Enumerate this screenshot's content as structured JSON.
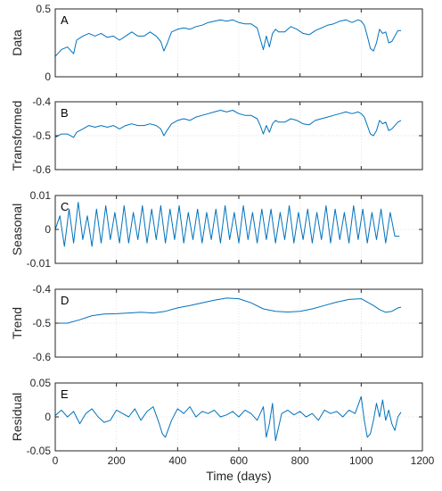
{
  "chart_data": {
    "type": "line",
    "line_color": "#0072BD",
    "xlabel": "Time (days)",
    "xlim": [
      0,
      1200
    ],
    "xticks": [
      "0",
      "200",
      "400",
      "600",
      "800",
      "1000",
      "1200"
    ],
    "x_grid": true,
    "panels": [
      {
        "letter": "A",
        "ylabel": "Data",
        "ylim": [
          0,
          0.5
        ],
        "yticks": [
          "0",
          "0.5"
        ],
        "series": [
          {
            "x": [
              0,
              20,
              40,
              60,
              70,
              90,
              110,
              130,
              150,
              170,
              190,
              210,
              230,
              250,
              270,
              290,
              310,
              330,
              345,
              355,
              365,
              380,
              400,
              420,
              440,
              460,
              480,
              500,
              520,
              540,
              560,
              580,
              600,
              620,
              640,
              660,
              670,
              680,
              690,
              700,
              710,
              720,
              730,
              750,
              770,
              790,
              810,
              830,
              850,
              870,
              890,
              910,
              930,
              950,
              970,
              990,
              1000,
              1010,
              1020,
              1030,
              1040,
              1050,
              1060,
              1070,
              1080,
              1090,
              1100,
              1110,
              1120,
              1130
            ],
            "y": [
              0.15,
              0.2,
              0.22,
              0.17,
              0.27,
              0.3,
              0.32,
              0.3,
              0.32,
              0.29,
              0.3,
              0.27,
              0.3,
              0.33,
              0.3,
              0.3,
              0.33,
              0.3,
              0.26,
              0.19,
              0.24,
              0.33,
              0.35,
              0.36,
              0.35,
              0.37,
              0.38,
              0.4,
              0.41,
              0.42,
              0.41,
              0.42,
              0.4,
              0.39,
              0.39,
              0.36,
              0.28,
              0.2,
              0.3,
              0.22,
              0.32,
              0.35,
              0.33,
              0.33,
              0.37,
              0.35,
              0.32,
              0.31,
              0.34,
              0.36,
              0.38,
              0.39,
              0.41,
              0.42,
              0.4,
              0.42,
              0.41,
              0.38,
              0.3,
              0.21,
              0.19,
              0.25,
              0.35,
              0.32,
              0.33,
              0.25,
              0.26,
              0.3,
              0.34,
              0.34
            ]
          }
        ]
      },
      {
        "letter": "B",
        "ylabel": "Transformed",
        "ylim": [
          -0.6,
          -0.4
        ],
        "yticks": [
          "-0.4",
          "-0.5",
          "-0.6"
        ],
        "zero_line_at": -0.5,
        "series": [
          {
            "x": [
              0,
              20,
              40,
              60,
              70,
              90,
              110,
              130,
              150,
              170,
              190,
              210,
              230,
              250,
              270,
              290,
              310,
              330,
              345,
              355,
              365,
              380,
              400,
              420,
              440,
              460,
              480,
              500,
              520,
              540,
              560,
              580,
              600,
              620,
              640,
              660,
              670,
              680,
              690,
              700,
              710,
              720,
              730,
              750,
              770,
              790,
              810,
              830,
              850,
              870,
              890,
              910,
              930,
              950,
              970,
              990,
              1000,
              1010,
              1020,
              1030,
              1040,
              1050,
              1060,
              1070,
              1080,
              1090,
              1100,
              1110,
              1120,
              1130
            ],
            "y": [
              -0.505,
              -0.495,
              -0.495,
              -0.505,
              -0.49,
              -0.48,
              -0.47,
              -0.475,
              -0.47,
              -0.475,
              -0.47,
              -0.48,
              -0.47,
              -0.465,
              -0.47,
              -0.47,
              -0.465,
              -0.47,
              -0.48,
              -0.5,
              -0.485,
              -0.465,
              -0.455,
              -0.45,
              -0.455,
              -0.445,
              -0.44,
              -0.435,
              -0.43,
              -0.425,
              -0.43,
              -0.425,
              -0.435,
              -0.44,
              -0.44,
              -0.45,
              -0.47,
              -0.495,
              -0.47,
              -0.49,
              -0.465,
              -0.455,
              -0.46,
              -0.46,
              -0.45,
              -0.455,
              -0.465,
              -0.468,
              -0.455,
              -0.45,
              -0.445,
              -0.44,
              -0.435,
              -0.43,
              -0.435,
              -0.43,
              -0.435,
              -0.445,
              -0.47,
              -0.495,
              -0.5,
              -0.485,
              -0.455,
              -0.465,
              -0.46,
              -0.485,
              -0.48,
              -0.47,
              -0.46,
              -0.455
            ]
          }
        ]
      },
      {
        "letter": "C",
        "ylabel": "Seasonal",
        "ylim": [
          -0.01,
          0.01
        ],
        "yticks": [
          "0.01",
          "0",
          "-0.01"
        ],
        "zero_line_at": 0,
        "series": [
          {
            "x": [
              0,
              15,
              30,
              45,
              60,
              75,
              90,
              105,
              120,
              135,
              150,
              165,
              180,
              195,
              210,
              225,
              240,
              255,
              270,
              285,
              300,
              315,
              330,
              345,
              360,
              375,
              390,
              405,
              420,
              435,
              450,
              465,
              480,
              495,
              510,
              525,
              540,
              555,
              570,
              585,
              600,
              615,
              630,
              645,
              660,
              675,
              690,
              705,
              720,
              735,
              750,
              765,
              780,
              795,
              810,
              825,
              840,
              855,
              870,
              885,
              900,
              915,
              930,
              945,
              960,
              975,
              990,
              1005,
              1020,
              1035,
              1050,
              1065,
              1080,
              1095,
              1110,
              1125
            ],
            "y": [
              0.0,
              0.004,
              -0.005,
              0.006,
              -0.004,
              0.008,
              -0.003,
              0.004,
              -0.005,
              0.006,
              -0.004,
              0.007,
              -0.003,
              0.005,
              -0.004,
              0.007,
              -0.004,
              0.005,
              -0.003,
              0.007,
              -0.004,
              0.006,
              -0.003,
              0.007,
              -0.004,
              0.006,
              -0.003,
              0.007,
              -0.004,
              0.005,
              -0.003,
              0.006,
              -0.004,
              0.005,
              -0.003,
              0.006,
              -0.004,
              0.007,
              -0.003,
              0.005,
              -0.004,
              0.007,
              -0.003,
              0.005,
              -0.004,
              0.006,
              -0.003,
              0.006,
              -0.004,
              0.005,
              -0.003,
              0.007,
              -0.004,
              0.005,
              -0.003,
              0.006,
              -0.004,
              0.005,
              -0.003,
              0.007,
              -0.004,
              0.006,
              -0.003,
              0.005,
              -0.004,
              0.007,
              -0.003,
              0.006,
              -0.004,
              0.005,
              -0.003,
              0.006,
              -0.004,
              0.005,
              -0.002,
              -0.002
            ]
          }
        ]
      },
      {
        "letter": "D",
        "ylabel": "Trend",
        "ylim": [
          -0.6,
          -0.4
        ],
        "yticks": [
          "-0.4",
          "-0.5",
          "-0.6"
        ],
        "zero_line_at": -0.5,
        "series": [
          {
            "x": [
              0,
              40,
              80,
              120,
              160,
              200,
              240,
              280,
              320,
              360,
              400,
              440,
              480,
              520,
              560,
              600,
              640,
              680,
              720,
              760,
              800,
              840,
              880,
              920,
              960,
              1000,
              1040,
              1060,
              1080,
              1100,
              1120,
              1130
            ],
            "y": [
              -0.5,
              -0.5,
              -0.49,
              -0.478,
              -0.473,
              -0.472,
              -0.47,
              -0.468,
              -0.47,
              -0.465,
              -0.455,
              -0.448,
              -0.44,
              -0.432,
              -0.426,
              -0.428,
              -0.44,
              -0.458,
              -0.465,
              -0.467,
              -0.465,
              -0.458,
              -0.448,
              -0.438,
              -0.43,
              -0.428,
              -0.448,
              -0.46,
              -0.468,
              -0.465,
              -0.455,
              -0.453
            ]
          }
        ]
      },
      {
        "letter": "E",
        "ylabel": "Residual",
        "ylim": [
          -0.05,
          0.05
        ],
        "yticks": [
          "0.05",
          "0",
          "-0.05"
        ],
        "zero_line_at": 0,
        "series": [
          {
            "x": [
              0,
              20,
              40,
              60,
              80,
              100,
              120,
              140,
              160,
              180,
              200,
              220,
              240,
              260,
              280,
              300,
              320,
              340,
              350,
              360,
              380,
              400,
              420,
              440,
              460,
              480,
              500,
              520,
              540,
              560,
              580,
              600,
              620,
              640,
              660,
              680,
              690,
              700,
              710,
              720,
              740,
              760,
              780,
              800,
              820,
              840,
              860,
              880,
              900,
              920,
              940,
              960,
              980,
              1000,
              1010,
              1020,
              1030,
              1040,
              1050,
              1060,
              1070,
              1080,
              1090,
              1100,
              1110,
              1120,
              1130
            ],
            "y": [
              0.002,
              0.01,
              0.0,
              0.008,
              -0.01,
              0.005,
              0.012,
              0.0,
              -0.008,
              -0.005,
              0.01,
              0.005,
              0.0,
              0.012,
              -0.005,
              0.008,
              0.015,
              -0.01,
              -0.025,
              -0.03,
              -0.005,
              0.012,
              0.005,
              0.015,
              0.0,
              0.008,
              0.005,
              0.01,
              0.0,
              0.003,
              0.008,
              0.0,
              0.01,
              0.005,
              -0.005,
              0.015,
              -0.03,
              -0.01,
              0.02,
              -0.035,
              0.005,
              0.01,
              0.003,
              0.008,
              0.0,
              0.005,
              -0.005,
              0.01,
              0.005,
              0.008,
              0.0,
              0.01,
              0.005,
              0.03,
              -0.005,
              -0.03,
              -0.025,
              -0.005,
              0.02,
              0.0,
              0.025,
              -0.005,
              0.01,
              -0.01,
              -0.02,
              0.0,
              0.007
            ]
          }
        ]
      }
    ]
  }
}
